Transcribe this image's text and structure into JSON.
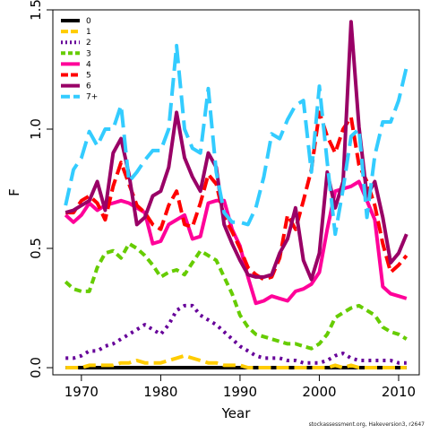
{
  "chart_data": {
    "type": "line",
    "title": "",
    "xlabel": "Year",
    "ylabel": "F",
    "xlim": [
      1966.4,
      2012.6
    ],
    "ylim": [
      -0.03,
      1.5
    ],
    "x_ticks": [
      1970,
      1980,
      1990,
      2000,
      2010
    ],
    "x_tick_labels": [
      "1970",
      "1980",
      "1990",
      "2000",
      "2010"
    ],
    "y_ticks": [
      0.0,
      0.5,
      1.0,
      1.5
    ],
    "y_tick_labels": [
      "0.0",
      "0.5",
      "1.0",
      "1.5"
    ],
    "grid": false,
    "legend_position": "top-left",
    "x": [
      1968,
      1969,
      1970,
      1971,
      1972,
      1973,
      1974,
      1975,
      1976,
      1977,
      1978,
      1979,
      1980,
      1981,
      1982,
      1983,
      1984,
      1985,
      1986,
      1987,
      1988,
      1989,
      1990,
      1991,
      1992,
      1993,
      1994,
      1995,
      1996,
      1997,
      1998,
      1999,
      2000,
      2001,
      2002,
      2003,
      2004,
      2005,
      2006,
      2007,
      2008,
      2009,
      2010,
      2011
    ],
    "series": [
      {
        "name": "0",
        "color": "#000000",
        "dash": "solid",
        "values": [
          0,
          0,
          0,
          0,
          0,
          0,
          0,
          0,
          0,
          0,
          0,
          0,
          0,
          0,
          0,
          0,
          0,
          0,
          0,
          0,
          0,
          0,
          0,
          0,
          0,
          0,
          0,
          0,
          0,
          0,
          0,
          0,
          0,
          0,
          0,
          0,
          0,
          0,
          0,
          0,
          0,
          0,
          0,
          0
        ]
      },
      {
        "name": "1",
        "color": "#FFCC00",
        "dash": "long",
        "values": [
          0.0,
          0.0,
          0.0,
          0.01,
          0.01,
          0.01,
          0.01,
          0.02,
          0.02,
          0.03,
          0.02,
          0.02,
          0.02,
          0.03,
          0.04,
          0.05,
          0.04,
          0.03,
          0.02,
          0.02,
          0.01,
          0.01,
          0.01,
          0.0,
          0.0,
          0.0,
          0.0,
          0.0,
          0.0,
          0.0,
          0.0,
          0.0,
          0.0,
          0.0,
          0.01,
          0.0,
          0.01,
          0.0,
          0.0,
          0.0,
          0.0,
          0.0,
          0.0,
          0.0
        ]
      },
      {
        "name": "2",
        "color": "#660099",
        "dash": "dot",
        "values": [
          0.04,
          0.04,
          0.05,
          0.07,
          0.07,
          0.09,
          0.1,
          0.12,
          0.14,
          0.16,
          0.18,
          0.16,
          0.14,
          0.18,
          0.24,
          0.26,
          0.26,
          0.22,
          0.2,
          0.18,
          0.15,
          0.12,
          0.09,
          0.07,
          0.05,
          0.04,
          0.04,
          0.04,
          0.03,
          0.03,
          0.02,
          0.02,
          0.02,
          0.03,
          0.05,
          0.06,
          0.04,
          0.03,
          0.03,
          0.03,
          0.03,
          0.03,
          0.02,
          0.02
        ]
      },
      {
        "name": "3",
        "color": "#66CC00",
        "dash": "medium",
        "values": [
          0.36,
          0.33,
          0.32,
          0.32,
          0.42,
          0.48,
          0.49,
          0.46,
          0.52,
          0.5,
          0.47,
          0.43,
          0.38,
          0.4,
          0.41,
          0.39,
          0.44,
          0.49,
          0.47,
          0.45,
          0.38,
          0.31,
          0.22,
          0.17,
          0.14,
          0.13,
          0.12,
          0.11,
          0.1,
          0.1,
          0.09,
          0.08,
          0.1,
          0.14,
          0.21,
          0.23,
          0.25,
          0.26,
          0.24,
          0.22,
          0.17,
          0.15,
          0.14,
          0.12
        ]
      },
      {
        "name": "4",
        "color": "#FF0099",
        "dash": "solid",
        "values": [
          0.64,
          0.61,
          0.64,
          0.69,
          0.66,
          0.68,
          0.69,
          0.7,
          0.69,
          0.67,
          0.65,
          0.52,
          0.53,
          0.6,
          0.62,
          0.64,
          0.54,
          0.55,
          0.69,
          0.7,
          0.7,
          0.58,
          0.51,
          0.38,
          0.27,
          0.28,
          0.3,
          0.29,
          0.28,
          0.32,
          0.33,
          0.35,
          0.4,
          0.58,
          0.74,
          0.75,
          0.76,
          0.78,
          0.7,
          0.62,
          0.34,
          0.31,
          0.3,
          0.29
        ]
      },
      {
        "name": "5",
        "color": "#FF0000",
        "dash": "long",
        "values": [
          0.65,
          0.65,
          0.7,
          0.72,
          0.69,
          0.62,
          0.76,
          0.86,
          0.77,
          0.68,
          0.65,
          0.6,
          0.58,
          0.68,
          0.74,
          0.6,
          0.59,
          0.69,
          0.81,
          0.77,
          0.63,
          0.57,
          0.5,
          0.42,
          0.39,
          0.37,
          0.38,
          0.46,
          0.64,
          0.58,
          0.7,
          0.83,
          1.07,
          0.97,
          0.9,
          1.0,
          1.05,
          0.85,
          0.78,
          0.68,
          0.52,
          0.4,
          0.43,
          0.47
        ]
      },
      {
        "name": "6",
        "color": "#990066",
        "dash": "solid",
        "values": [
          0.65,
          0.66,
          0.68,
          0.7,
          0.78,
          0.66,
          0.9,
          0.96,
          0.81,
          0.6,
          0.63,
          0.72,
          0.74,
          0.84,
          1.07,
          0.88,
          0.8,
          0.74,
          0.9,
          0.84,
          0.6,
          0.52,
          0.45,
          0.39,
          0.38,
          0.38,
          0.39,
          0.48,
          0.54,
          0.67,
          0.45,
          0.37,
          0.48,
          0.82,
          0.67,
          0.78,
          1.45,
          1.01,
          0.72,
          0.78,
          0.63,
          0.44,
          0.48,
          0.56
        ]
      },
      {
        "name": "7+",
        "color": "#33CCFF",
        "dash": "xlong",
        "values": [
          0.68,
          0.83,
          0.88,
          0.99,
          0.93,
          1.0,
          1.0,
          1.1,
          0.78,
          0.82,
          0.87,
          0.91,
          0.91,
          1.0,
          1.35,
          1.0,
          0.92,
          0.9,
          1.17,
          0.82,
          0.65,
          0.61,
          0.61,
          0.6,
          0.67,
          0.8,
          0.98,
          0.96,
          1.04,
          1.1,
          1.12,
          0.82,
          1.18,
          0.86,
          0.56,
          0.75,
          0.97,
          1.0,
          0.63,
          0.89,
          1.03,
          1.03,
          1.12,
          1.26
        ]
      }
    ]
  },
  "footer": {
    "note": "stockassessment.org, Hakeversion3, r2647"
  }
}
